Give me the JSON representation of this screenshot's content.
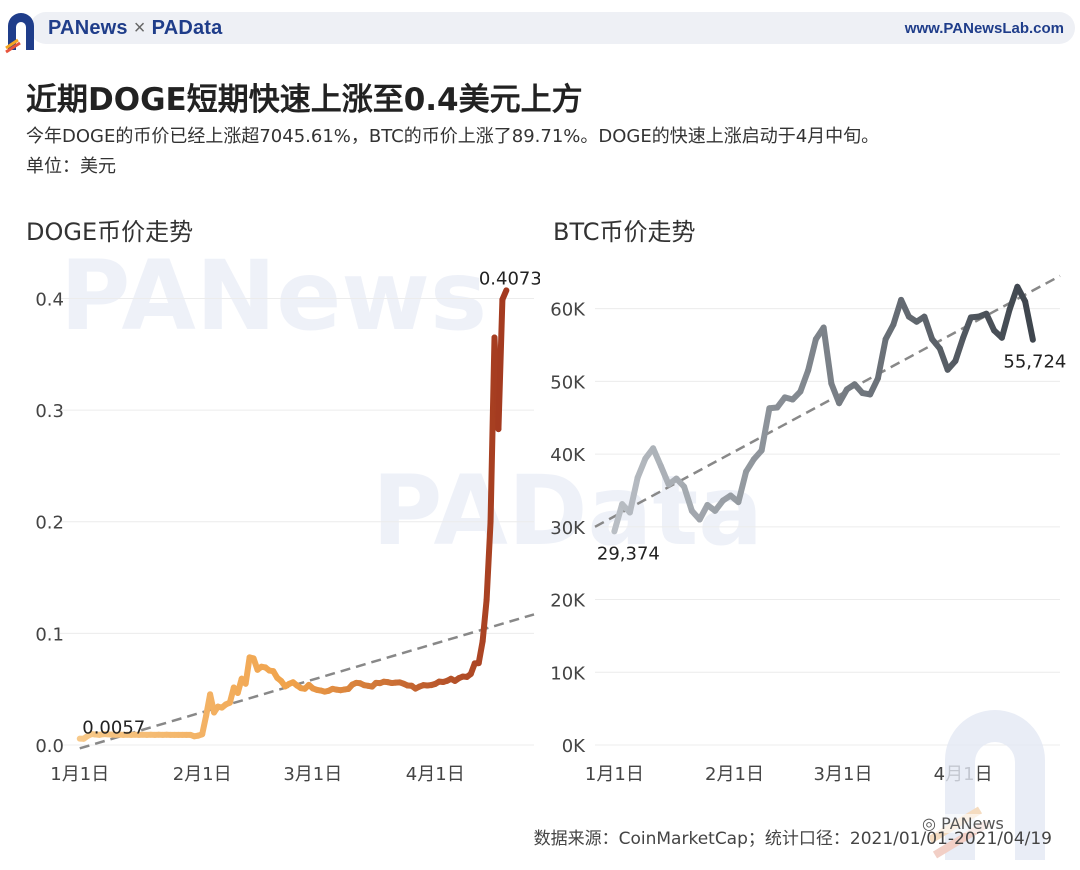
{
  "header": {
    "brand_left": "PANews",
    "brand_sep": "×",
    "brand_right": "PAData",
    "site": "www.PANewsLab.com"
  },
  "title": "近期DOGE短期快速上涨至0.4美元上方",
  "subtitle": "今年DOGE的币价已经上涨超7045.61%，BTC的币价上涨了89.71%。DOGE的快速上涨启动于4月中旬。",
  "unit": "单位：美元",
  "source": "数据来源：CoinMarketCap；统计口径：2021/01/01-2021/04/19",
  "watermarks": {
    "left": "PANews",
    "center": "PAData",
    "corner": "PANews"
  },
  "colors": {
    "doge_start": "#f7c98a",
    "doge_mid": "#f0a24a",
    "doge_end": "#a3391f",
    "btc_start": "#b9bec4",
    "btc_end": "#3f464e",
    "trend": "#888888",
    "grid": "#ececec"
  },
  "chart_data": [
    {
      "type": "line",
      "title": "DOGE币价走势",
      "x_tick_labels": [
        "1月1日",
        "2月1日",
        "3月1日",
        "4月1日"
      ],
      "x_ticks_day": [
        0,
        31,
        59,
        90
      ],
      "y_tick_labels": [
        "0.0",
        "0.1",
        "0.2",
        "0.3",
        "0.4"
      ],
      "ylim": [
        0,
        0.43
      ],
      "xlim_day": [
        -5,
        115
      ],
      "start_label": "0.0057",
      "end_label": "0.4073",
      "trend_line": {
        "from": [
          0,
          -0.003
        ],
        "to": [
          115,
          0.117
        ]
      },
      "x_day": [
        0,
        1,
        2,
        3,
        4,
        5,
        6,
        7,
        8,
        9,
        10,
        11,
        12,
        13,
        14,
        15,
        16,
        17,
        18,
        19,
        20,
        21,
        22,
        23,
        24,
        25,
        26,
        27,
        28,
        29,
        30,
        31,
        32,
        33,
        34,
        35,
        36,
        37,
        38,
        39,
        40,
        41,
        42,
        43,
        44,
        45,
        46,
        47,
        48,
        49,
        50,
        51,
        52,
        53,
        54,
        55,
        56,
        57,
        58,
        59,
        60,
        61,
        62,
        63,
        64,
        65,
        66,
        67,
        68,
        69,
        70,
        71,
        72,
        73,
        74,
        75,
        76,
        77,
        78,
        79,
        80,
        81,
        82,
        83,
        84,
        85,
        86,
        87,
        88,
        89,
        90,
        91,
        92,
        93,
        94,
        95,
        96,
        97,
        98,
        99,
        100,
        101,
        102,
        103,
        104,
        105,
        106,
        107,
        108
      ],
      "values": [
        0.0057,
        0.0056,
        0.0081,
        0.0098,
        0.0094,
        0.0091,
        0.0097,
        0.0096,
        0.0093,
        0.0092,
        0.0093,
        0.0091,
        0.0092,
        0.0091,
        0.0092,
        0.0091,
        0.0092,
        0.0091,
        0.0092,
        0.0091,
        0.0092,
        0.0091,
        0.0092,
        0.0091,
        0.0091,
        0.0091,
        0.0091,
        0.0091,
        0.0091,
        0.0078,
        0.0084,
        0.0096,
        0.0263,
        0.0454,
        0.0291,
        0.0344,
        0.0335,
        0.0364,
        0.0379,
        0.0515,
        0.0466,
        0.0594,
        0.0549,
        0.0785,
        0.0776,
        0.0674,
        0.0701,
        0.0695,
        0.0667,
        0.0661,
        0.0601,
        0.0573,
        0.0525,
        0.0547,
        0.0562,
        0.0533,
        0.0509,
        0.0504,
        0.0539,
        0.0507,
        0.0494,
        0.0488,
        0.0478,
        0.0485,
        0.0503,
        0.0496,
        0.0491,
        0.0497,
        0.0502,
        0.0541,
        0.0557,
        0.0553,
        0.0536,
        0.053,
        0.0523,
        0.0557,
        0.0554,
        0.0567,
        0.0563,
        0.0555,
        0.0559,
        0.0561,
        0.0549,
        0.0533,
        0.0531,
        0.0505,
        0.0523,
        0.0536,
        0.0533,
        0.0537,
        0.0547,
        0.0568,
        0.0564,
        0.0575,
        0.0593,
        0.0574,
        0.0599,
        0.0613,
        0.061,
        0.0636,
        0.0731,
        0.0733,
        0.093,
        0.13,
        0.2,
        0.365,
        0.283,
        0.399,
        0.4073
      ]
    },
    {
      "type": "line",
      "title": "BTC币价走势",
      "x_tick_labels": [
        "1月1日",
        "2月1日",
        "3月1日",
        "4月1日"
      ],
      "x_ticks_day": [
        0,
        31,
        59,
        90
      ],
      "y_tick_labels": [
        "0K",
        "10K",
        "20K",
        "30K",
        "40K",
        "50K",
        "60K"
      ],
      "y_tick_values": [
        0,
        10000,
        20000,
        30000,
        40000,
        50000,
        60000
      ],
      "ylim": [
        0,
        66000
      ],
      "xlim_day": [
        -5,
        115
      ],
      "start_label": "29,374",
      "end_label": "55,724",
      "trend_line": {
        "from": [
          -5,
          30000
        ],
        "to": [
          115,
          64500
        ]
      },
      "x_day": [
        0,
        2,
        4,
        6,
        8,
        10,
        12,
        14,
        16,
        18,
        20,
        22,
        24,
        26,
        28,
        30,
        32,
        34,
        36,
        38,
        40,
        42,
        44,
        46,
        48,
        50,
        52,
        54,
        56,
        58,
        60,
        62,
        64,
        66,
        68,
        70,
        72,
        74,
        76,
        78,
        80,
        82,
        84,
        86,
        88,
        90,
        92,
        94,
        96,
        98,
        100,
        102,
        104,
        106,
        108
      ],
      "values": [
        29374,
        33114,
        31971,
        36769,
        39381,
        40797,
        38356,
        35828,
        36631,
        35510,
        32197,
        31000,
        33000,
        32200,
        33600,
        34300,
        33400,
        37600,
        39300,
        40500,
        46300,
        46400,
        47800,
        47500,
        48600,
        51500,
        55800,
        57400,
        49700,
        47000,
        48900,
        49600,
        48400,
        48200,
        50400,
        55800,
        57800,
        61200,
        58900,
        58200,
        58900,
        55800,
        54500,
        51600,
        52800,
        56000,
        58800,
        58900,
        59300,
        57000,
        56000,
        59900,
        63000,
        61000,
        55724
      ]
    }
  ]
}
